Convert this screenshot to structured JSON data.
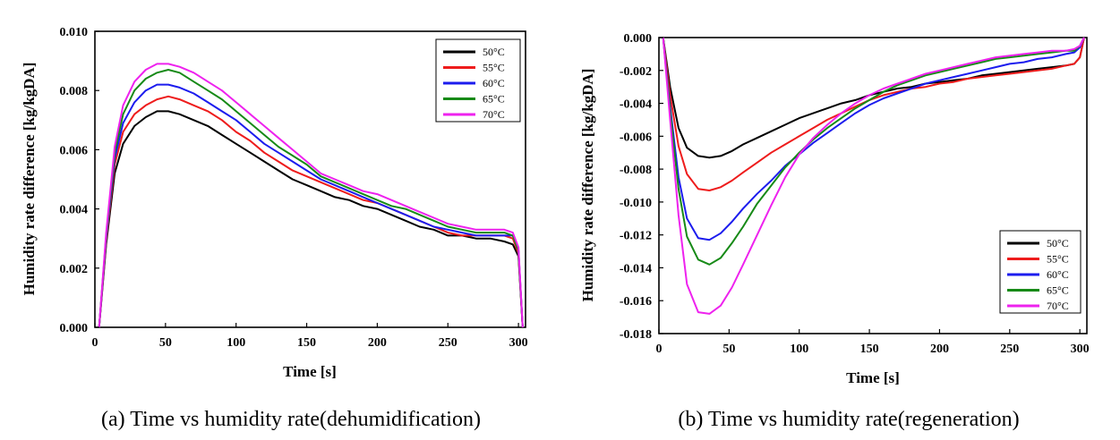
{
  "chart_data": [
    {
      "type": "line",
      "caption": "(a)  Time  vs  humidity  rate(dehumidification)",
      "xlabel": "Time [s]",
      "ylabel": "Humidity rate difference [kg/kgDA]",
      "xlim": [
        0,
        305
      ],
      "ylim": [
        0,
        0.01
      ],
      "xticks": [
        0,
        50,
        100,
        150,
        200,
        250,
        300
      ],
      "yticks": [
        0.0,
        0.002,
        0.004,
        0.006,
        0.008,
        0.01
      ],
      "ytick_labels": [
        "0.000",
        "0.002",
        "0.004",
        "0.006",
        "0.008",
        "0.010"
      ],
      "grid": false,
      "legend_position": "top-right",
      "series": [
        {
          "name": "50°C",
          "color": "#000000",
          "x": [
            3,
            8,
            14,
            20,
            28,
            36,
            44,
            52,
            60,
            70,
            80,
            90,
            100,
            110,
            120,
            130,
            140,
            150,
            160,
            170,
            180,
            190,
            200,
            210,
            220,
            230,
            240,
            250,
            260,
            270,
            280,
            290,
            296,
            300,
            303
          ],
          "y": [
            0.0,
            0.0028,
            0.0052,
            0.0062,
            0.0068,
            0.0071,
            0.0073,
            0.0073,
            0.0072,
            0.007,
            0.0068,
            0.0065,
            0.0062,
            0.0059,
            0.0056,
            0.0053,
            0.005,
            0.0048,
            0.0046,
            0.0044,
            0.0043,
            0.0041,
            0.004,
            0.0038,
            0.0036,
            0.0034,
            0.0033,
            0.0031,
            0.0031,
            0.003,
            0.003,
            0.0029,
            0.0028,
            0.0024,
            0.0
          ]
        },
        {
          "name": "55°C",
          "color": "#ee1c1c",
          "x": [
            3,
            8,
            14,
            20,
            28,
            36,
            44,
            52,
            60,
            70,
            80,
            90,
            100,
            110,
            120,
            130,
            140,
            150,
            160,
            170,
            180,
            190,
            200,
            210,
            220,
            230,
            240,
            250,
            260,
            270,
            280,
            290,
            296,
            300,
            303
          ],
          "y": [
            0.0,
            0.0029,
            0.0055,
            0.0066,
            0.0072,
            0.0075,
            0.0077,
            0.0078,
            0.0077,
            0.0075,
            0.0073,
            0.007,
            0.0066,
            0.0063,
            0.0059,
            0.0056,
            0.0053,
            0.0051,
            0.0049,
            0.0047,
            0.0045,
            0.0043,
            0.0042,
            0.004,
            0.0038,
            0.0036,
            0.0034,
            0.0032,
            0.0031,
            0.0031,
            0.0031,
            0.0031,
            0.003,
            0.0025,
            0.0
          ]
        },
        {
          "name": "60°C",
          "color": "#1c1cee",
          "x": [
            3,
            8,
            14,
            20,
            28,
            36,
            44,
            52,
            60,
            70,
            80,
            90,
            100,
            110,
            120,
            130,
            140,
            150,
            160,
            170,
            180,
            190,
            200,
            210,
            220,
            230,
            240,
            250,
            260,
            270,
            280,
            290,
            296,
            300,
            303
          ],
          "y": [
            0.0,
            0.003,
            0.0057,
            0.0069,
            0.0076,
            0.008,
            0.0082,
            0.0082,
            0.0081,
            0.0079,
            0.0076,
            0.0073,
            0.007,
            0.0066,
            0.0062,
            0.0059,
            0.0056,
            0.0053,
            0.005,
            0.0048,
            0.0046,
            0.0044,
            0.0042,
            0.004,
            0.0038,
            0.0036,
            0.0034,
            0.0033,
            0.0032,
            0.0031,
            0.0031,
            0.0031,
            0.0031,
            0.0026,
            0.0
          ]
        },
        {
          "name": "65°C",
          "color": "#178a17",
          "x": [
            3,
            8,
            14,
            20,
            28,
            36,
            44,
            52,
            60,
            70,
            80,
            90,
            100,
            110,
            120,
            130,
            140,
            150,
            160,
            170,
            180,
            190,
            200,
            210,
            220,
            230,
            240,
            250,
            260,
            270,
            280,
            290,
            296,
            300,
            303
          ],
          "y": [
            0.0,
            0.0031,
            0.0059,
            0.0072,
            0.008,
            0.0084,
            0.0086,
            0.0087,
            0.0086,
            0.0083,
            0.008,
            0.0077,
            0.0073,
            0.0069,
            0.0065,
            0.0061,
            0.0058,
            0.0055,
            0.0051,
            0.0049,
            0.0047,
            0.0045,
            0.0043,
            0.0041,
            0.004,
            0.0038,
            0.0036,
            0.0034,
            0.0033,
            0.0032,
            0.0032,
            0.0032,
            0.0031,
            0.0026,
            0.0
          ]
        },
        {
          "name": "70°C",
          "color": "#ee22ee",
          "x": [
            3,
            8,
            14,
            20,
            28,
            36,
            44,
            52,
            60,
            70,
            80,
            90,
            100,
            110,
            120,
            130,
            140,
            150,
            160,
            170,
            180,
            190,
            200,
            210,
            220,
            230,
            240,
            250,
            260,
            270,
            280,
            290,
            296,
            300,
            303
          ],
          "y": [
            0.0,
            0.0032,
            0.0061,
            0.0075,
            0.0083,
            0.0087,
            0.0089,
            0.0089,
            0.0088,
            0.0086,
            0.0083,
            0.008,
            0.0076,
            0.0072,
            0.0068,
            0.0064,
            0.006,
            0.0056,
            0.0052,
            0.005,
            0.0048,
            0.0046,
            0.0045,
            0.0043,
            0.0041,
            0.0039,
            0.0037,
            0.0035,
            0.0034,
            0.0033,
            0.0033,
            0.0033,
            0.0032,
            0.0027,
            0.0
          ]
        }
      ]
    },
    {
      "type": "line",
      "caption": "(b)  Time  vs  humidity  rate(regeneration)",
      "xlabel": "Time [s]",
      "ylabel": "Humidity rate difference [kg/kgDA]",
      "xlim": [
        0,
        305
      ],
      "ylim": [
        -0.018,
        0.0
      ],
      "xticks": [
        0,
        50,
        100,
        150,
        200,
        250,
        300
      ],
      "yticks": [
        0.0,
        -0.002,
        -0.004,
        -0.006,
        -0.008,
        -0.01,
        -0.012,
        -0.014,
        -0.016,
        -0.018
      ],
      "ytick_labels": [
        "0.000",
        "-0.002",
        "-0.004",
        "-0.006",
        "-0.008",
        "-0.010",
        "-0.012",
        "-0.014",
        "-0.016",
        "-0.018"
      ],
      "grid": false,
      "legend_position": "bottom-right",
      "series": [
        {
          "name": "50°C",
          "color": "#000000",
          "x": [
            3,
            8,
            14,
            20,
            28,
            36,
            44,
            52,
            60,
            70,
            80,
            90,
            100,
            110,
            120,
            130,
            140,
            150,
            160,
            170,
            180,
            190,
            200,
            210,
            220,
            230,
            240,
            250,
            260,
            270,
            280,
            290,
            296,
            300,
            303
          ],
          "y": [
            0.0,
            -0.003,
            -0.0055,
            -0.0067,
            -0.0072,
            -0.0073,
            -0.0072,
            -0.0069,
            -0.0065,
            -0.0061,
            -0.0057,
            -0.0053,
            -0.0049,
            -0.0046,
            -0.0043,
            -0.004,
            -0.0038,
            -0.0035,
            -0.0033,
            -0.0031,
            -0.003,
            -0.0028,
            -0.0027,
            -0.0026,
            -0.0025,
            -0.0023,
            -0.0022,
            -0.0021,
            -0.002,
            -0.0019,
            -0.0018,
            -0.0017,
            -0.0016,
            -0.0012,
            0.0
          ]
        },
        {
          "name": "55°C",
          "color": "#ee1c1c",
          "x": [
            3,
            8,
            14,
            20,
            28,
            36,
            44,
            52,
            60,
            70,
            80,
            90,
            100,
            110,
            120,
            130,
            140,
            150,
            160,
            170,
            180,
            190,
            200,
            210,
            220,
            230,
            240,
            250,
            260,
            270,
            280,
            290,
            296,
            300,
            303
          ],
          "y": [
            0.0,
            -0.0035,
            -0.0066,
            -0.0083,
            -0.0092,
            -0.0093,
            -0.0091,
            -0.0087,
            -0.0082,
            -0.0076,
            -0.007,
            -0.0065,
            -0.006,
            -0.0055,
            -0.005,
            -0.0046,
            -0.0042,
            -0.0038,
            -0.0035,
            -0.0033,
            -0.0031,
            -0.003,
            -0.0028,
            -0.0027,
            -0.0025,
            -0.0024,
            -0.0023,
            -0.0022,
            -0.0021,
            -0.002,
            -0.0019,
            -0.0017,
            -0.0016,
            -0.0012,
            0.0
          ]
        },
        {
          "name": "60°C",
          "color": "#1c1cee",
          "x": [
            3,
            8,
            14,
            20,
            28,
            36,
            44,
            52,
            60,
            70,
            80,
            90,
            100,
            110,
            120,
            130,
            140,
            150,
            160,
            170,
            180,
            190,
            200,
            210,
            220,
            230,
            240,
            250,
            260,
            270,
            280,
            290,
            296,
            300,
            303
          ],
          "y": [
            0.0,
            -0.0042,
            -0.0085,
            -0.011,
            -0.0122,
            -0.0123,
            -0.0119,
            -0.0112,
            -0.0104,
            -0.0095,
            -0.0087,
            -0.0078,
            -0.0071,
            -0.0064,
            -0.0058,
            -0.0052,
            -0.0046,
            -0.0041,
            -0.0037,
            -0.0034,
            -0.0031,
            -0.0028,
            -0.0026,
            -0.0024,
            -0.0022,
            -0.002,
            -0.0018,
            -0.0016,
            -0.0015,
            -0.0013,
            -0.0012,
            -0.001,
            -0.0009,
            -0.0006,
            0.0
          ]
        },
        {
          "name": "65°C",
          "color": "#178a17",
          "x": [
            3,
            8,
            14,
            20,
            28,
            36,
            44,
            52,
            60,
            70,
            80,
            90,
            100,
            110,
            120,
            130,
            140,
            150,
            160,
            170,
            180,
            190,
            200,
            210,
            220,
            230,
            240,
            250,
            260,
            270,
            280,
            290,
            296,
            300,
            303
          ],
          "y": [
            0.0,
            -0.0045,
            -0.0092,
            -0.0121,
            -0.0135,
            -0.0138,
            -0.0134,
            -0.0125,
            -0.0115,
            -0.0101,
            -0.009,
            -0.0079,
            -0.007,
            -0.0062,
            -0.0055,
            -0.0049,
            -0.0043,
            -0.0038,
            -0.0033,
            -0.0029,
            -0.0026,
            -0.0023,
            -0.0021,
            -0.0019,
            -0.0017,
            -0.0015,
            -0.0013,
            -0.0012,
            -0.0011,
            -0.001,
            -0.0009,
            -0.0008,
            -0.0008,
            -0.0005,
            0.0
          ]
        },
        {
          "name": "70°C",
          "color": "#ee22ee",
          "x": [
            3,
            8,
            14,
            20,
            28,
            36,
            44,
            52,
            60,
            70,
            80,
            90,
            100,
            110,
            120,
            130,
            140,
            150,
            160,
            170,
            180,
            190,
            200,
            210,
            220,
            230,
            240,
            250,
            260,
            270,
            280,
            290,
            296,
            300,
            303
          ],
          "y": [
            0.0,
            -0.005,
            -0.0108,
            -0.015,
            -0.0167,
            -0.0168,
            -0.0163,
            -0.0152,
            -0.0138,
            -0.012,
            -0.0102,
            -0.0085,
            -0.0071,
            -0.0061,
            -0.0053,
            -0.0046,
            -0.004,
            -0.0035,
            -0.0031,
            -0.0028,
            -0.0025,
            -0.0022,
            -0.002,
            -0.0018,
            -0.0016,
            -0.0014,
            -0.0012,
            -0.0011,
            -0.001,
            -0.0009,
            -0.0008,
            -0.0008,
            -0.0007,
            -0.0005,
            0.0
          ]
        }
      ]
    }
  ]
}
